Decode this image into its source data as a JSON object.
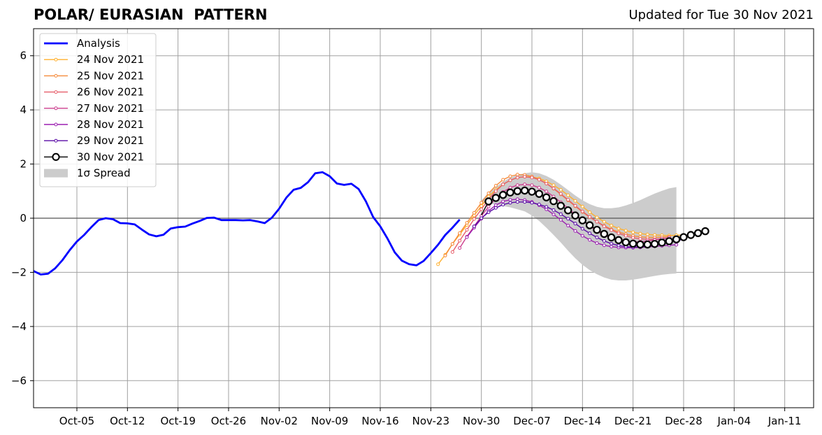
{
  "header": {
    "title": "POLAR/ EURASIAN  PATTERN",
    "updated": "Updated for Tue 30 Nov 2021"
  },
  "chart_data": {
    "type": "line",
    "title": "POLAR/ EURASIAN  PATTERN",
    "xlabel": "",
    "ylabel": "",
    "xlim": [
      "2021-09-29",
      "2022-01-15"
    ],
    "ylim": [
      -7,
      7
    ],
    "grid": true,
    "legend_position": "top-left",
    "x_ticks": [
      {
        "date": "2021-10-05",
        "label": "Oct-05"
      },
      {
        "date": "2021-10-12",
        "label": "Oct-12"
      },
      {
        "date": "2021-10-19",
        "label": "Oct-19"
      },
      {
        "date": "2021-10-26",
        "label": "Oct-26"
      },
      {
        "date": "2021-11-02",
        "label": "Nov-02"
      },
      {
        "date": "2021-11-09",
        "label": "Nov-09"
      },
      {
        "date": "2021-11-16",
        "label": "Nov-16"
      },
      {
        "date": "2021-11-23",
        "label": "Nov-23"
      },
      {
        "date": "2021-11-30",
        "label": "Nov-30"
      },
      {
        "date": "2021-12-07",
        "label": "Dec-07"
      },
      {
        "date": "2021-12-14",
        "label": "Dec-14"
      },
      {
        "date": "2021-12-21",
        "label": "Dec-21"
      },
      {
        "date": "2021-12-28",
        "label": "Dec-28"
      },
      {
        "date": "2022-01-04",
        "label": "Jan-04"
      },
      {
        "date": "2022-01-11",
        "label": "Jan-11"
      }
    ],
    "y_ticks": [
      {
        "value": 6,
        "label": "6"
      },
      {
        "value": 4,
        "label": "4"
      },
      {
        "value": 2,
        "label": "2"
      },
      {
        "value": 0,
        "label": "0"
      },
      {
        "value": -2,
        "label": "−2"
      },
      {
        "value": -4,
        "label": "−4"
      },
      {
        "value": -6,
        "label": "−6"
      }
    ],
    "analysis": {
      "name": "Analysis",
      "color": "#0000ff",
      "start_date": "2021-09-29",
      "values": [
        -1.95,
        -2.08,
        -2.05,
        -1.85,
        -1.55,
        -1.18,
        -0.86,
        -0.62,
        -0.33,
        -0.07,
        0.0,
        -0.04,
        -0.18,
        -0.19,
        -0.23,
        -0.42,
        -0.6,
        -0.67,
        -0.61,
        -0.38,
        -0.33,
        -0.31,
        -0.2,
        -0.1,
        0.01,
        0.02,
        -0.07,
        -0.07,
        -0.07,
        -0.08,
        -0.07,
        -0.12,
        -0.18,
        0.02,
        0.35,
        0.76,
        1.05,
        1.12,
        1.33,
        1.66,
        1.7,
        1.55,
        1.28,
        1.23,
        1.27,
        1.08,
        0.63,
        0.05,
        -0.3,
        -0.75,
        -1.26,
        -1.57,
        -1.7,
        -1.74,
        -1.58,
        -1.29,
        -0.98,
        -0.62,
        -0.35,
        -0.05
      ]
    },
    "spread": {
      "name": "1σ Spread",
      "color": "#cccccc",
      "start_date": "2021-11-30",
      "upper": [
        0.65,
        0.95,
        1.15,
        1.35,
        1.5,
        1.6,
        1.66,
        1.7,
        1.66,
        1.56,
        1.42,
        1.24,
        1.04,
        0.84,
        0.66,
        0.52,
        0.42,
        0.37,
        0.37,
        0.4,
        0.47,
        0.56,
        0.67,
        0.79,
        0.91,
        1.01,
        1.1,
        1.15
      ],
      "lower": [
        0.55,
        0.55,
        0.5,
        0.45,
        0.4,
        0.33,
        0.25,
        0.1,
        -0.1,
        -0.35,
        -0.62,
        -0.9,
        -1.2,
        -1.48,
        -1.72,
        -1.92,
        -2.07,
        -2.19,
        -2.27,
        -2.3,
        -2.3,
        -2.27,
        -2.23,
        -2.18,
        -2.13,
        -2.09,
        -2.06,
        -2.04
      ]
    },
    "forecasts": [
      {
        "name": "24 Nov 2021",
        "color": "#ffb02e",
        "start_date": "2021-11-24",
        "values": [
          -1.7,
          -1.35,
          -0.95,
          -0.6,
          -0.25,
          0.1,
          0.45,
          0.8,
          1.05,
          1.25,
          1.4,
          1.5,
          1.53,
          1.52,
          1.47,
          1.36,
          1.22,
          1.05,
          0.85,
          0.64,
          0.43,
          0.22,
          0.03,
          -0.13,
          -0.27,
          -0.38,
          -0.46,
          -0.52,
          -0.57,
          -0.6,
          -0.62,
          -0.63,
          -0.64,
          -0.63,
          -0.62
        ]
      },
      {
        "name": "25 Nov 2021",
        "color": "#f58a3a",
        "start_date": "2021-11-25",
        "values": [
          -1.38,
          -0.95,
          -0.55,
          -0.17,
          0.2,
          0.57,
          0.92,
          1.2,
          1.42,
          1.55,
          1.61,
          1.6,
          1.54,
          1.43,
          1.28,
          1.09,
          0.88,
          0.66,
          0.44,
          0.23,
          0.04,
          -0.13,
          -0.28,
          -0.41,
          -0.51,
          -0.59,
          -0.65,
          -0.69,
          -0.71,
          -0.71,
          -0.7,
          -0.68
        ]
      },
      {
        "name": "26 Nov 2021",
        "color": "#e65e6a",
        "start_date": "2021-11-26",
        "values": [
          -1.25,
          -0.83,
          -0.43,
          -0.03,
          0.33,
          0.7,
          1.0,
          1.25,
          1.4,
          1.5,
          1.53,
          1.5,
          1.42,
          1.28,
          1.1,
          0.9,
          0.68,
          0.46,
          0.25,
          0.05,
          -0.13,
          -0.3,
          -0.44,
          -0.56,
          -0.65,
          -0.72,
          -0.76,
          -0.78,
          -0.78,
          -0.76,
          -0.72
        ]
      },
      {
        "name": "27 Nov 2021",
        "color": "#cc3d8e",
        "start_date": "2021-11-27",
        "values": [
          -1.1,
          -0.68,
          -0.3,
          0.08,
          0.43,
          0.73,
          0.97,
          1.13,
          1.22,
          1.25,
          1.22,
          1.13,
          0.99,
          0.8,
          0.59,
          0.37,
          0.14,
          -0.08,
          -0.29,
          -0.47,
          -0.62,
          -0.74,
          -0.82,
          -0.87,
          -0.88,
          -0.87,
          -0.84,
          -0.8,
          -0.76,
          -0.72
        ]
      },
      {
        "name": "28 Nov 2021",
        "color": "#9b1fb0",
        "start_date": "2021-11-28",
        "values": [
          -0.7,
          -0.35,
          -0.02,
          0.27,
          0.48,
          0.62,
          0.68,
          0.7,
          0.67,
          0.6,
          0.48,
          0.33,
          0.14,
          -0.06,
          -0.27,
          -0.47,
          -0.65,
          -0.8,
          -0.92,
          -1.0,
          -1.05,
          -1.08,
          -1.09,
          -1.09,
          -1.08,
          -1.06,
          -1.04,
          -1.02,
          -1.0,
          -0.98
        ]
      },
      {
        "name": "29 Nov 2021",
        "color": "#5a0ba6",
        "start_date": "2021-11-29",
        "values": [
          -0.3,
          0.0,
          0.22,
          0.38,
          0.5,
          0.57,
          0.6,
          0.6,
          0.57,
          0.51,
          0.42,
          0.3,
          0.15,
          -0.02,
          -0.2,
          -0.39,
          -0.56,
          -0.71,
          -0.84,
          -0.94,
          -1.01,
          -1.05,
          -1.07,
          -1.06,
          -1.03,
          -0.99,
          -0.94,
          -0.88,
          -0.83,
          -0.78
        ]
      },
      {
        "name": "30 Nov 2021",
        "color": "#000000",
        "start_date": "2021-11-30",
        "values": [
          0.12,
          0.62,
          0.75,
          0.86,
          0.95,
          1.0,
          1.02,
          0.98,
          0.9,
          0.77,
          0.63,
          0.46,
          0.29,
          0.1,
          -0.08,
          -0.26,
          -0.43,
          -0.58,
          -0.71,
          -0.81,
          -0.89,
          -0.94,
          -0.97,
          -0.97,
          -0.95,
          -0.9,
          -0.85,
          -0.78,
          -0.7,
          -0.62,
          -0.55,
          -0.48
        ]
      }
    ]
  }
}
